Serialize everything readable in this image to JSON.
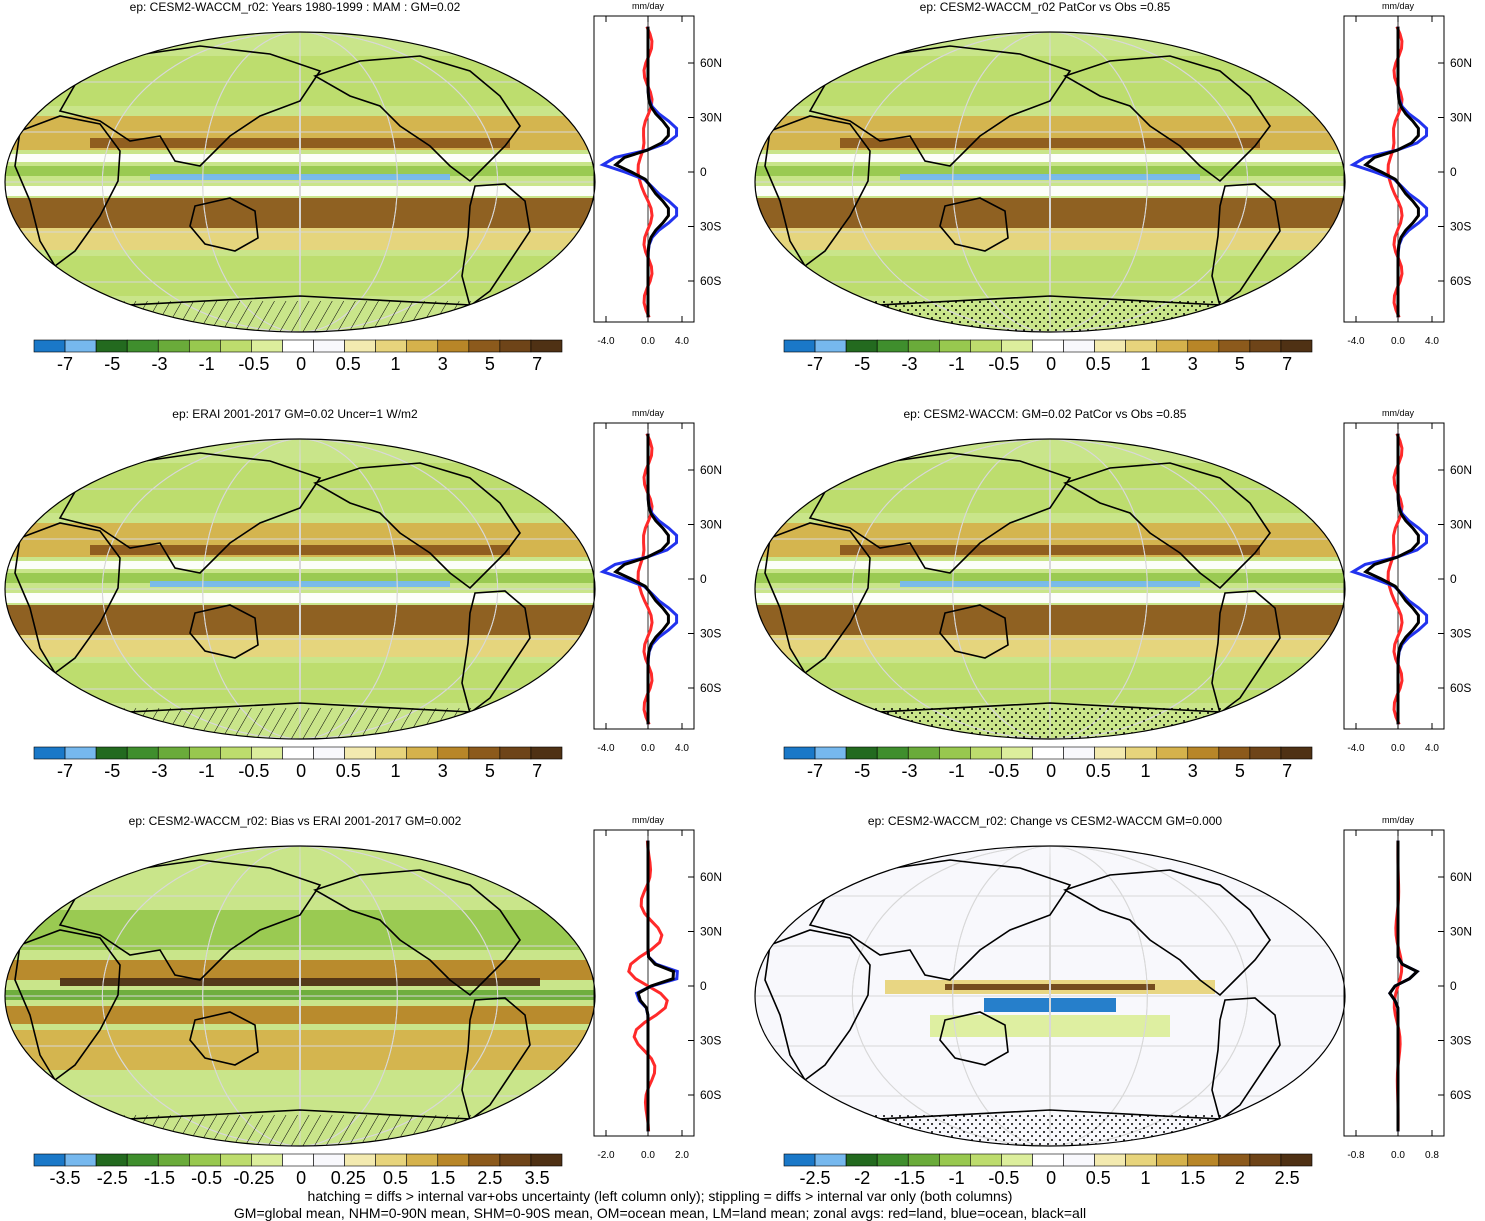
{
  "colors": {
    "cbar": [
      "#1a78c8",
      "#76b8ee",
      "#236a1f",
      "#3f8e2d",
      "#6aab3a",
      "#98c84f",
      "#bddc6d",
      "#dcee9c",
      "#ffffff",
      "#f8f8fc",
      "#f3eab0",
      "#e7d47c",
      "#d5b24c",
      "#b88628",
      "#8c5a1c",
      "#6e4418",
      "#4f3114"
    ],
    "sea": "#c9e58a",
    "land_outline": "#000000",
    "zonal_land": "#ff2a2a",
    "zonal_ocean": "#2233ee",
    "zonal_all": "#000000"
  },
  "panels": [
    {
      "id": "p1",
      "title": "ep: CESM2-WACCM_r02: Years 1980-1999 : MAM : GM=0.02",
      "cbar_labels": [
        "-7",
        "-5",
        "-3",
        "-1",
        "-0.5",
        "0",
        "0.5",
        "1",
        "3",
        "5",
        "7"
      ],
      "zonal": {
        "unit": "mm/day",
        "xticks": [
          "-4.0",
          "0.0",
          "4.0"
        ],
        "yticks": [
          "60N",
          "30N",
          "0",
          "30S",
          "60S"
        ]
      },
      "hatch": "hatch",
      "variant": "full"
    },
    {
      "id": "p2",
      "title": "ep: CESM2-WACCM_r02 PatCor vs Obs =0.85",
      "cbar_labels": [
        "-7",
        "-5",
        "-3",
        "-1",
        "-0.5",
        "0",
        "0.5",
        "1",
        "3",
        "5",
        "7"
      ],
      "zonal": {
        "unit": "mm/day",
        "xticks": [
          "-4.0",
          "0.0",
          "4.0"
        ],
        "yticks": [
          "60N",
          "30N",
          "0",
          "30S",
          "60S"
        ]
      },
      "hatch": "stipple",
      "variant": "full"
    },
    {
      "id": "p3",
      "title": "ep: ERAI 2001-2017 GM=0.02 Uncer=1 W/m2",
      "cbar_labels": [
        "-7",
        "-5",
        "-3",
        "-1",
        "-0.5",
        "0",
        "0.5",
        "1",
        "3",
        "5",
        "7"
      ],
      "zonal": {
        "unit": "mm/day",
        "xticks": [
          "-4.0",
          "0.0",
          "4.0"
        ],
        "yticks": [
          "60N",
          "30N",
          "0",
          "30S",
          "60S"
        ]
      },
      "hatch": "hatch",
      "variant": "full"
    },
    {
      "id": "p4",
      "title": "ep: CESM2-WACCM: GM=0.02 PatCor vs Obs =0.85",
      "cbar_labels": [
        "-7",
        "-5",
        "-3",
        "-1",
        "-0.5",
        "0",
        "0.5",
        "1",
        "3",
        "5",
        "7"
      ],
      "zonal": {
        "unit": "mm/day",
        "xticks": [
          "-4.0",
          "0.0",
          "4.0"
        ],
        "yticks": [
          "60N",
          "30N",
          "0",
          "30S",
          "60S"
        ]
      },
      "hatch": "stipple",
      "variant": "full"
    },
    {
      "id": "p5",
      "title": "ep: CESM2-WACCM_r02: Bias vs ERAI 2001-2017 GM=0.002",
      "cbar_labels": [
        "-3.5",
        "-2.5",
        "-1.5",
        "-0.5",
        "-0.25",
        "0",
        "0.25",
        "0.5",
        "1.5",
        "2.5",
        "3.5"
      ],
      "zonal": {
        "unit": "mm/day",
        "xticks": [
          "-2.0",
          "0.0",
          "2.0"
        ],
        "yticks": [
          "60N",
          "30N",
          "0",
          "30S",
          "60S"
        ]
      },
      "hatch": "hatch",
      "variant": "bias"
    },
    {
      "id": "p6",
      "title": "ep: CESM2-WACCM_r02: Change vs CESM2-WACCM GM=0.000",
      "cbar_labels": [
        "-2.5",
        "-2",
        "-1.5",
        "-1",
        "-0.5",
        "0",
        "0.5",
        "1",
        "1.5",
        "2",
        "2.5"
      ],
      "zonal": {
        "unit": "mm/day",
        "xticks": [
          "-0.8",
          "0.0",
          "0.8"
        ],
        "yticks": [
          "60N",
          "30N",
          "0",
          "30S",
          "60S"
        ]
      },
      "hatch": "stipple",
      "variant": "change"
    }
  ],
  "footer": {
    "line1": "hatching = diffs > internal var+obs uncertainty (left column only); stippling = diffs > internal var only (both columns)",
    "line2": "GM=global mean, NHM=0-90N mean, SHM=0-90S mean, OM=ocean mean, LM=land mean; zonal avgs: red=land, blue=ocean, black=all"
  }
}
